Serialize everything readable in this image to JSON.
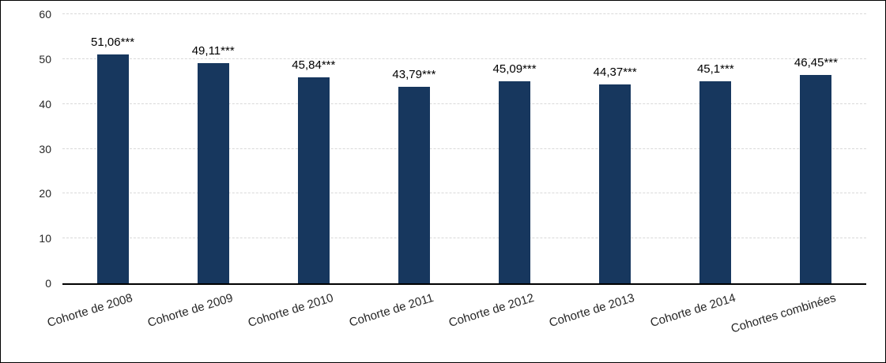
{
  "frame": {
    "background": "#ffffff",
    "border_color": "#000000"
  },
  "chart_data": {
    "type": "bar",
    "title": "",
    "xlabel": "",
    "ylabel": "",
    "categories": [
      "Cohorte de 2008",
      "Cohorte de 2009",
      "Cohorte de 2010",
      "Cohorte de 2011",
      "Cohorte de 2012",
      "Cohorte de 2013",
      "Cohorte de 2014",
      "Cohortes combinées"
    ],
    "values": [
      51.06,
      49.11,
      45.84,
      43.79,
      45.09,
      44.37,
      45.1,
      46.45
    ],
    "value_labels": [
      "51,06***",
      "49,11***",
      "45,84***",
      "43,79***",
      "45,09***",
      "44,37***",
      "45,1***",
      "46,45***"
    ],
    "ylim": [
      0,
      60
    ],
    "yticks": [
      0,
      10,
      20,
      30,
      40,
      50,
      60
    ],
    "ytick_labels": [
      "0",
      "10",
      "20",
      "30",
      "40",
      "50",
      "60"
    ],
    "grid": "horizontal-dashed",
    "legend": "none",
    "bar_color": "#17375E",
    "gridline_color": "#d9d9d9",
    "axis_line_color": "#000000",
    "text_color": "#262626",
    "x_label_rotation_deg": -17
  }
}
